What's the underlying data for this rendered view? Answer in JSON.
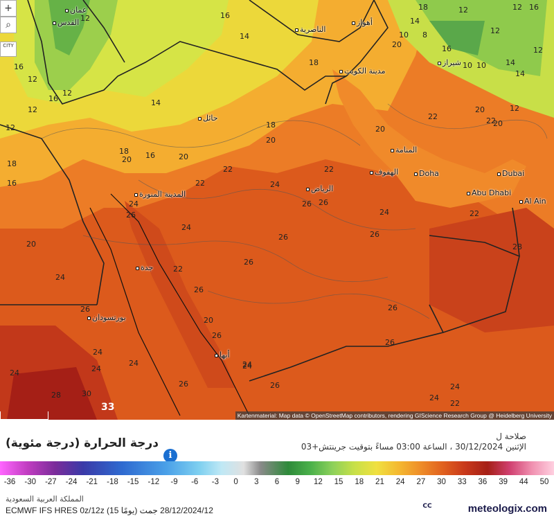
{
  "map": {
    "attribution": "Kartenmaterial: Map data © OpenStreetMap contributors, rendering GIScience Research Group @ Heidelberg University",
    "zoom_in_label": "+",
    "zoom_out_label": "⌕",
    "city_toggle_label": "CITY",
    "temperature_labels": [
      "16",
      "12",
      "12",
      "10",
      "16",
      "20",
      "18",
      "14",
      "12",
      "16",
      "12",
      "14",
      "18",
      "20",
      "18",
      "16",
      "20",
      "22",
      "22",
      "22",
      "22",
      "22",
      "24",
      "24",
      "26",
      "26",
      "26",
      "26",
      "24",
      "26",
      "26",
      "28",
      "24",
      "24",
      "24",
      "24",
      "26",
      "26",
      "26",
      "26",
      "22",
      "20",
      "20",
      "18",
      "24",
      "24",
      "24",
      "26",
      "26",
      "28",
      "30",
      "33",
      "24",
      "24",
      "24",
      "22",
      "26",
      "22",
      "20",
      "20",
      "20",
      "20",
      "12",
      "12",
      "14",
      "12",
      "10",
      "12",
      "16",
      "10",
      "8",
      "12",
      "14",
      "16",
      "12",
      "14",
      "16",
      "18"
    ],
    "cities": [
      {
        "name": "عمان"
      },
      {
        "name": "القدس"
      },
      {
        "name": "الناصرية"
      },
      {
        "name": "أهواز"
      },
      {
        "name": "مدينة الكويت"
      },
      {
        "name": "حائل"
      },
      {
        "name": "المنامة"
      },
      {
        "name": "الهفوف"
      },
      {
        "name": "Doha"
      },
      {
        "name": "Dubai"
      },
      {
        "name": "Abu Dhabi"
      },
      {
        "name": "Al Ain"
      },
      {
        "name": "الرياض"
      },
      {
        "name": "المدينة المنورة"
      },
      {
        "name": "جدة"
      },
      {
        "name": "بورتسودان"
      },
      {
        "name": "أبها"
      },
      {
        "name": "شيراز"
      }
    ]
  },
  "legend": {
    "title": "درجة الحرارة (درجة مئوية)",
    "validity_line1": "صلاحة ل",
    "validity_line2": "الإثنين 30/12/2024 ، الساعة 03:00 مساءً بتوقيت جرينتش+03",
    "ticks": [
      "-36",
      "-30",
      "-27",
      "-24",
      "-21",
      "-18",
      "-15",
      "-12",
      "-9",
      "-6",
      "-3",
      "0",
      "3",
      "6",
      "9",
      "12",
      "15",
      "18",
      "21",
      "24",
      "27",
      "30",
      "33",
      "36",
      "39",
      "44",
      "50"
    ],
    "region": "المملكة العربية السعودية",
    "model": "ECMWF IFS HRES 0z/12z  (15 يومًا)  28/12/2024/12 جمت",
    "brand": "meteologix.com",
    "brand_logo": "CC"
  },
  "colors": {
    "hot": "#d8561b",
    "warm": "#f08a2a",
    "mild": "#f4c33a",
    "cool": "#c9e04a",
    "cold": "#7bc24a",
    "info_blue": "#1a6fd1"
  }
}
